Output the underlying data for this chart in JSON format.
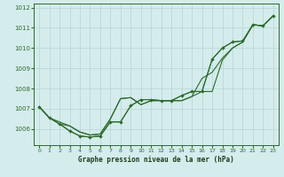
{
  "title": "Graphe pression niveau de la mer (hPa)",
  "bg_color": "#d4ecec",
  "grid_color": "#b8d4d4",
  "line_color": "#2d6a2d",
  "xlim": [
    -0.5,
    23.5
  ],
  "ylim": [
    1005.2,
    1012.2
  ],
  "yticks": [
    1006,
    1007,
    1008,
    1009,
    1010,
    1011,
    1012
  ],
  "xticks": [
    0,
    1,
    2,
    3,
    4,
    5,
    6,
    7,
    8,
    9,
    10,
    11,
    12,
    13,
    14,
    15,
    16,
    17,
    18,
    19,
    20,
    21,
    22,
    23
  ],
  "line_straight1_x": [
    0,
    1,
    2,
    3,
    4,
    5,
    6,
    7,
    8,
    9,
    10,
    11,
    12,
    13,
    14,
    15,
    16,
    17,
    18,
    19,
    20,
    21,
    22,
    23
  ],
  "line_straight1_y": [
    1007.1,
    1006.55,
    1006.25,
    1006.15,
    1005.85,
    1005.7,
    1005.75,
    1006.5,
    1007.5,
    1007.55,
    1007.2,
    1007.4,
    1007.4,
    1007.4,
    1007.4,
    1007.6,
    1008.5,
    1008.8,
    1009.5,
    1010.0,
    1010.3,
    1011.15,
    1011.1,
    1011.6
  ],
  "line_straight2_x": [
    0,
    1,
    3,
    4,
    5,
    6,
    7,
    8,
    9,
    10,
    11,
    12,
    13,
    14,
    15,
    16,
    17,
    18,
    19,
    20,
    21,
    22,
    23
  ],
  "line_straight2_y": [
    1007.1,
    1006.55,
    1006.15,
    1005.85,
    1005.7,
    1005.75,
    1006.5,
    1007.5,
    1007.55,
    1007.2,
    1007.4,
    1007.4,
    1007.4,
    1007.4,
    1007.6,
    1007.85,
    1007.85,
    1009.4,
    1010.0,
    1010.3,
    1011.15,
    1011.1,
    1011.6
  ],
  "line_curve_x": [
    0,
    1,
    2,
    3,
    4,
    5,
    6,
    7,
    8,
    9,
    10,
    11,
    12,
    13,
    14,
    15,
    16,
    17,
    18,
    19,
    20,
    21,
    22,
    23
  ],
  "line_curve_y": [
    1007.1,
    1006.55,
    1006.25,
    1005.9,
    1005.65,
    1005.6,
    1005.65,
    1006.35,
    1006.35,
    1007.15,
    1007.45,
    1007.45,
    1007.4,
    1007.4,
    1007.65,
    1007.85,
    1007.85,
    1009.45,
    1010.0,
    1010.3,
    1010.35,
    1011.15,
    1011.1,
    1011.6
  ],
  "line_markers_x": [
    0,
    1,
    2,
    3,
    4,
    5,
    6,
    7,
    8,
    9,
    10,
    11,
    12,
    13,
    14,
    15,
    16,
    17,
    18,
    19,
    20,
    21,
    22,
    23
  ],
  "line_markers_y": [
    1007.1,
    1006.55,
    1006.25,
    1005.9,
    1005.65,
    1005.6,
    1005.65,
    1006.35,
    1006.35,
    1007.15,
    1007.45,
    1007.45,
    1007.4,
    1007.4,
    1007.65,
    1007.85,
    1007.85,
    1009.45,
    1010.0,
    1010.3,
    1010.35,
    1011.15,
    1011.1,
    1011.6
  ]
}
